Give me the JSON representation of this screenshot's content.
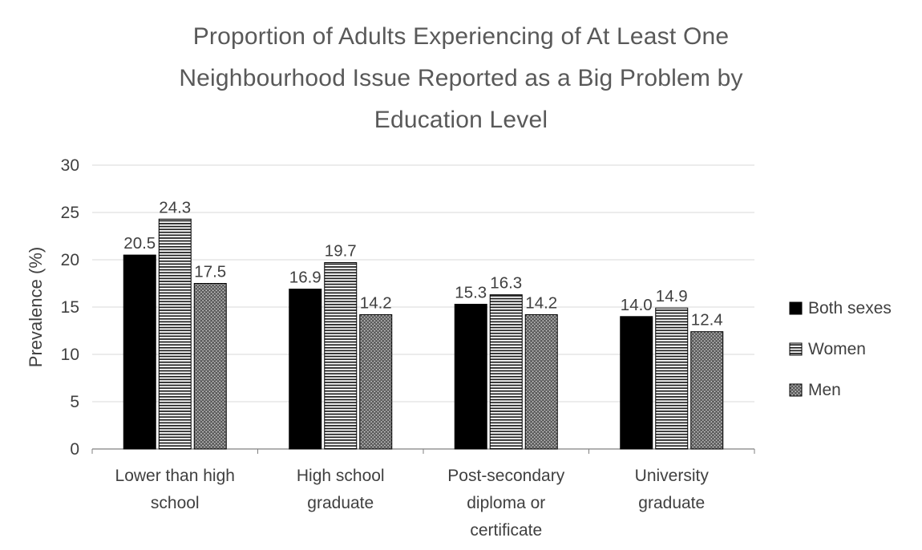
{
  "colors": {
    "background": "#ffffff",
    "grid": "#d9d9d9",
    "axis": "#808080",
    "text": "#404040",
    "title": "#595959",
    "bar_black": "#000000",
    "bar_gray": "#595959",
    "pattern_light": "#dcdcdc"
  },
  "chart_data": {
    "type": "bar",
    "title": "Proportion of Adults Experiencing of At Least One Neighbourhood Issue Reported as a Big Problem by Education Level",
    "title_lines": [
      "Proportion of Adults Experiencing of At Least One",
      "Neighbourhood Issue Reported as a Big Problem by",
      "Education Level"
    ],
    "xlabel": "",
    "ylabel": "Prevalence (%)",
    "ylim": [
      0,
      30
    ],
    "yticks": [
      0,
      5,
      10,
      15,
      20,
      25,
      30
    ],
    "grid": true,
    "legend_position": "right",
    "value_labels": true,
    "categories": [
      "Lower than high school",
      "High school graduate",
      "Post-secondary diploma or certificate",
      "University graduate"
    ],
    "category_lines": [
      [
        "Lower than high",
        "school"
      ],
      [
        "High school",
        "graduate"
      ],
      [
        "Post-secondary",
        "diploma or",
        "certificate"
      ],
      [
        "University",
        "graduate"
      ]
    ],
    "series": [
      {
        "name": "Both sexes",
        "fill": "solid-black",
        "values": [
          20.5,
          16.9,
          15.3,
          14.0
        ]
      },
      {
        "name": "Women",
        "fill": "horizontal-stripes",
        "values": [
          24.3,
          19.7,
          16.3,
          14.9
        ]
      },
      {
        "name": "Men",
        "fill": "dotted-gray",
        "values": [
          17.5,
          14.2,
          14.2,
          12.4
        ]
      }
    ]
  }
}
